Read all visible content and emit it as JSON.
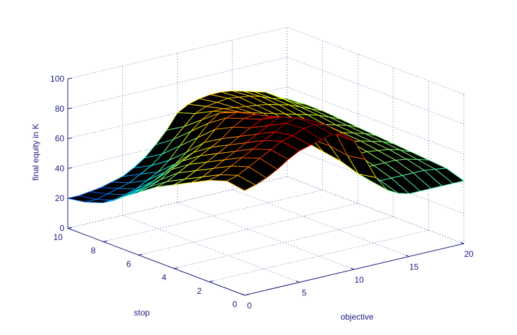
{
  "chart_data": {
    "type": "surface3d",
    "title": "",
    "xlabel": "objective",
    "ylabel": "stop",
    "zlabel": "final equity in K",
    "xlim": [
      0,
      20
    ],
    "ylim": [
      0,
      10
    ],
    "zlim": [
      0,
      100
    ],
    "xticks": [
      "0",
      "5",
      "10",
      "15",
      "20"
    ],
    "yticks": [
      "0",
      "2",
      "4",
      "6",
      "8",
      "10"
    ],
    "zticks": [
      "0",
      "20",
      "40",
      "60",
      "80",
      "100"
    ],
    "grid": true,
    "colormap": "jet",
    "stop_values": [
      10,
      9,
      8,
      7,
      6,
      5,
      4,
      3,
      2,
      1,
      0
    ],
    "objective_values": [
      0,
      1,
      2,
      3,
      4,
      5,
      6,
      7,
      8,
      9,
      10,
      11,
      12,
      13,
      14,
      15,
      16,
      17,
      18,
      19,
      20
    ],
    "z": [
      [
        20,
        20,
        21,
        22,
        24,
        26,
        30,
        35,
        42,
        50,
        60,
        64,
        66,
        67,
        67,
        66,
        64,
        62,
        60,
        55,
        52
      ],
      [
        22,
        22,
        24,
        26,
        28,
        32,
        36,
        42,
        50,
        57,
        64,
        67,
        68,
        69,
        68,
        67,
        65,
        62,
        60,
        56,
        53
      ],
      [
        26,
        26,
        28,
        30,
        34,
        38,
        44,
        52,
        60,
        66,
        70,
        70,
        69,
        68,
        67,
        66,
        64,
        62,
        59,
        56,
        53
      ],
      [
        34,
        35,
        37,
        40,
        44,
        48,
        54,
        62,
        70,
        75,
        74,
        72,
        70,
        68,
        66,
        64,
        62,
        60,
        58,
        55,
        52
      ],
      [
        42,
        44,
        47,
        52,
        56,
        60,
        65,
        72,
        78,
        80,
        76,
        72,
        68,
        65,
        63,
        62,
        60,
        58,
        56,
        54,
        51
      ],
      [
        50,
        52,
        56,
        60,
        64,
        68,
        72,
        78,
        82,
        83,
        78,
        72,
        66,
        63,
        60,
        60,
        59,
        57,
        55,
        53,
        50
      ],
      [
        56,
        58,
        62,
        66,
        70,
        74,
        78,
        82,
        86,
        86,
        80,
        72,
        64,
        60,
        58,
        58,
        57,
        56,
        54,
        52,
        49
      ],
      [
        62,
        64,
        68,
        72,
        76,
        80,
        84,
        88,
        92,
        90,
        82,
        72,
        62,
        57,
        55,
        55,
        55,
        54,
        53,
        51,
        48
      ],
      [
        68,
        70,
        74,
        78,
        82,
        86,
        90,
        94,
        96,
        93,
        84,
        72,
        60,
        54,
        52,
        52,
        52,
        52,
        51,
        49,
        47
      ],
      [
        72,
        74,
        78,
        82,
        86,
        90,
        92,
        95,
        96,
        94,
        86,
        70,
        56,
        50,
        48,
        48,
        48,
        48,
        48,
        47,
        46
      ],
      [
        70,
        72,
        75,
        79,
        84,
        88,
        90,
        92,
        94,
        92,
        86,
        72,
        58,
        48,
        44,
        42,
        42,
        42,
        42,
        42,
        42
      ]
    ]
  }
}
